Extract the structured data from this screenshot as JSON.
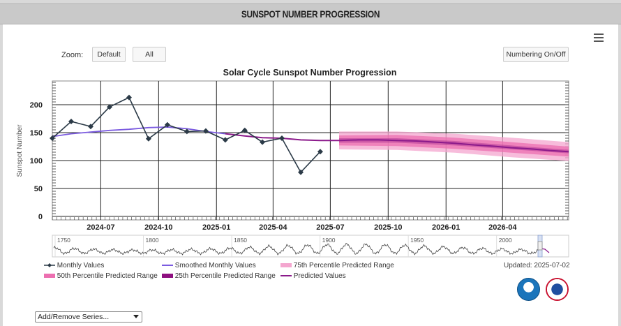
{
  "header": {
    "title": "SUNSPOT NUMBER PROGRESSION"
  },
  "toolbar": {
    "zoom_label": "Zoom:",
    "zoom_default": "Default",
    "zoom_all": "All",
    "numbering_toggle": "Numbering On/Off"
  },
  "menu_icon": "hamburger-icon",
  "updated": "Updated: 2025-07-02",
  "series_select": "Add/Remove Series...",
  "navigator": {
    "labels": [
      "1750",
      "1800",
      "1850",
      "1900",
      "1950",
      "2000"
    ]
  },
  "legend": {
    "monthly": "Monthly Values",
    "smoothed": "Smoothed Monthly Values",
    "p75": "75th Percentile Predicted Range",
    "p50": "50th Percentile Predicted Range",
    "p25": "25th Percentile Predicted Range",
    "predicted": "Predicted Values"
  },
  "colors": {
    "monthly": "#2b3a47",
    "smoothed": "#7b5be0",
    "predicted": "#8b1a8b",
    "p75": "#f4a6cf",
    "p50": "#ec6fb0",
    "p25": "#8e0f80"
  },
  "chart_data": {
    "type": "line",
    "title": "Solar Cycle Sunspot Number Progression",
    "ylabel": "Sunspot Number",
    "xlabel": "",
    "ylim": [
      0,
      250
    ],
    "yticks": [
      0,
      50,
      100,
      150,
      200
    ],
    "xlim": [
      "2024-04-15",
      "2026-07-15"
    ],
    "xticks": [
      "2024-07",
      "2024-10",
      "2025-01",
      "2025-04",
      "2025-07",
      "2025-10",
      "2026-01",
      "2026-04"
    ],
    "grid": true,
    "series": [
      {
        "name": "Monthly Values",
        "x": [
          "2024-04",
          "2024-05",
          "2024-06",
          "2024-07",
          "2024-08",
          "2024-09",
          "2024-10",
          "2024-11",
          "2024-12",
          "2025-01",
          "2025-02",
          "2025-03",
          "2025-04",
          "2025-05",
          "2025-06"
        ],
        "y": [
          140,
          170,
          161,
          196,
          213,
          139,
          164,
          152,
          153,
          137,
          154,
          133,
          140,
          79,
          116
        ]
      },
      {
        "name": "Smoothed Monthly Values",
        "x": [
          "2024-04",
          "2024-05",
          "2024-06",
          "2024-07",
          "2024-08",
          "2024-09",
          "2024-10",
          "2024-11",
          "2024-12",
          "2025-01"
        ],
        "y": [
          143,
          148,
          151,
          154,
          156,
          159,
          160,
          157,
          152,
          148
        ]
      },
      {
        "name": "Predicted Values",
        "x": [
          "2025-01",
          "2025-02",
          "2025-03",
          "2025-04",
          "2025-05",
          "2025-06",
          "2025-07",
          "2025-08",
          "2025-09",
          "2025-10",
          "2025-11",
          "2025-12",
          "2026-01",
          "2026-02",
          "2026-03",
          "2026-04",
          "2026-05",
          "2026-06",
          "2026-07"
        ],
        "y": [
          148,
          144,
          141,
          140,
          137,
          136,
          136,
          137,
          137,
          136,
          135,
          133,
          131,
          128,
          126,
          123,
          121,
          118,
          116
        ]
      },
      {
        "name": "75th Percentile Predicted Range",
        "x": [
          "2025-07",
          "2025-10",
          "2026-01",
          "2026-04",
          "2026-07"
        ],
        "low": [
          120,
          119,
          114,
          106,
          99
        ],
        "high": [
          152,
          152,
          148,
          141,
          133
        ]
      },
      {
        "name": "50th Percentile Predicted Range",
        "x": [
          "2025-07",
          "2025-10",
          "2026-01",
          "2026-04",
          "2026-07"
        ],
        "low": [
          127,
          126,
          121,
          114,
          107
        ],
        "high": [
          145,
          146,
          141,
          133,
          125
        ]
      },
      {
        "name": "25th Percentile Predicted Range",
        "x": [
          "2025-07",
          "2025-10",
          "2026-01",
          "2026-04",
          "2026-07"
        ],
        "low": [
          132,
          132,
          127,
          120,
          113
        ],
        "high": [
          140,
          140,
          135,
          127,
          119
        ]
      }
    ],
    "legend_position": "bottom-left"
  }
}
